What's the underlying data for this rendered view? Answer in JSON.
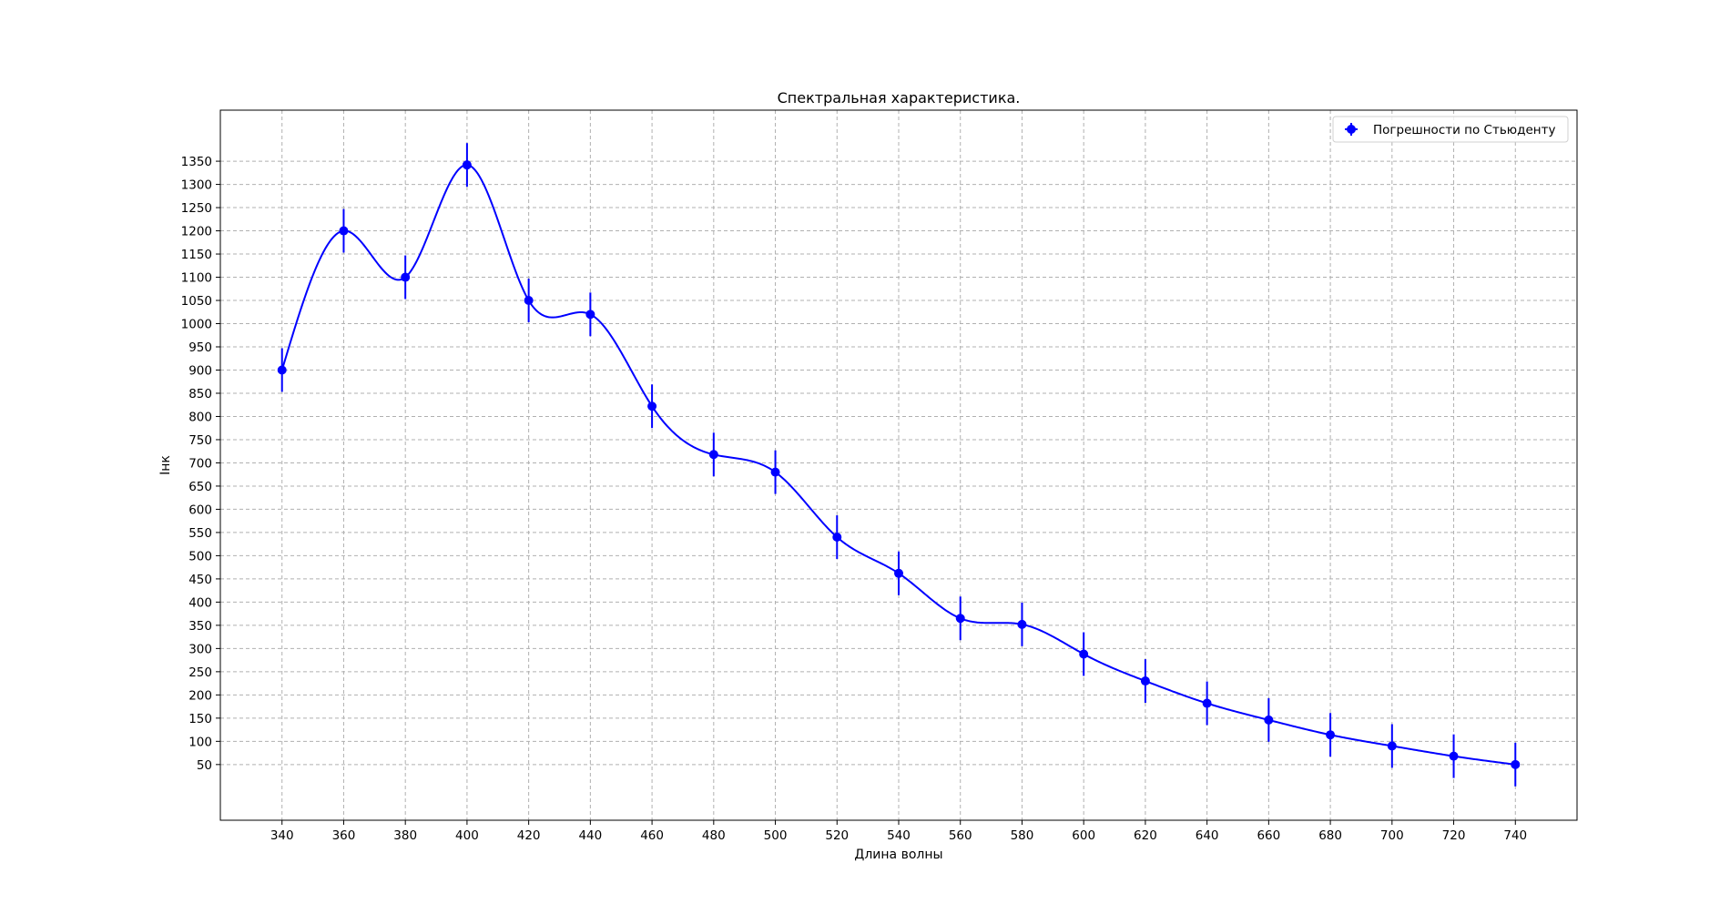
{
  "chart_data": {
    "type": "line",
    "title": "Спектральная характеристика.",
    "xlabel": "Длина волны",
    "ylabel": "Iнк",
    "x": [
      340,
      360,
      380,
      400,
      420,
      440,
      460,
      480,
      500,
      520,
      540,
      560,
      580,
      600,
      620,
      640,
      660,
      680,
      700,
      720,
      740
    ],
    "series": [
      {
        "name": "Погрешности по Стьюденту",
        "values": [
          900,
          1200,
          1100,
          1342,
          1050,
          1020,
          822,
          718,
          680,
          540,
          462,
          365,
          352,
          288,
          230,
          182,
          146,
          114,
          90,
          68,
          50
        ],
        "error": [
          47,
          47,
          47,
          47,
          47,
          47,
          47,
          47,
          47,
          47,
          47,
          47,
          47,
          47,
          47,
          47,
          47,
          47,
          47,
          47,
          47
        ]
      }
    ],
    "xticks": [
      340,
      360,
      380,
      400,
      420,
      440,
      460,
      480,
      500,
      520,
      540,
      560,
      580,
      600,
      620,
      640,
      660,
      680,
      700,
      720,
      740
    ],
    "yticks": [
      50,
      100,
      150,
      200,
      250,
      300,
      350,
      400,
      450,
      500,
      550,
      600,
      650,
      700,
      750,
      800,
      850,
      900,
      950,
      1000,
      1050,
      1100,
      1150,
      1200,
      1250,
      1300,
      1350
    ],
    "xlim": [
      320,
      760
    ],
    "ylim": [
      -70,
      1460
    ],
    "grid": true,
    "legend_position": "top-right",
    "colors": {
      "series": "#0000ff",
      "grid": "#b0b0b0",
      "axes": "#000000"
    }
  }
}
